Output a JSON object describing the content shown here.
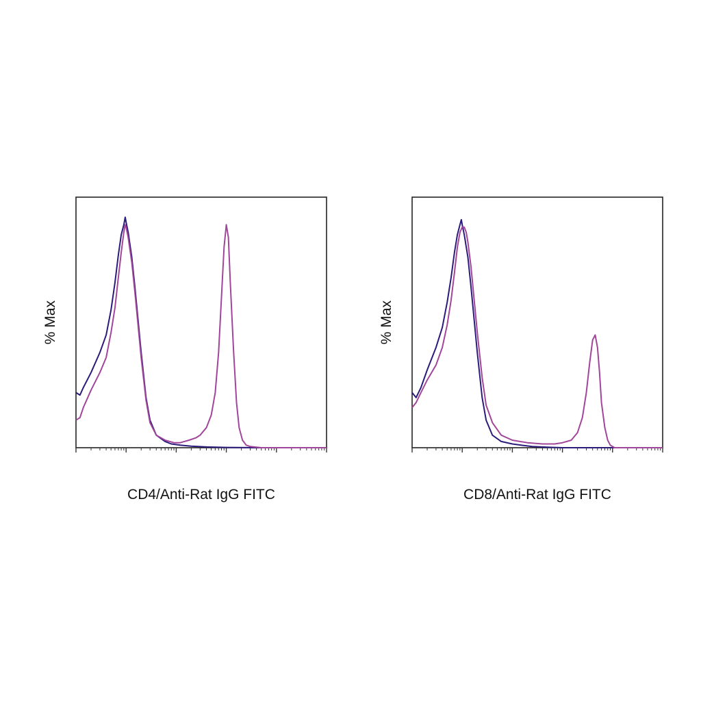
{
  "figure": {
    "panels": [
      {
        "xlabel": "CD4/Anti-Rat IgG FITC",
        "ylabel": "% Max"
      },
      {
        "xlabel": "CD8/Anti-Rat IgG FITC",
        "ylabel": "% Max"
      }
    ]
  },
  "chart_data": [
    {
      "type": "line",
      "title": "",
      "xlabel": "CD4/Anti-Rat IgG FITC",
      "ylabel": "% Max",
      "x_scale": "log",
      "xlim": [
        1,
        100000
      ],
      "ylim": [
        0,
        100
      ],
      "grid": false,
      "legend": "none",
      "series": [
        {
          "color": "#2a1a7a",
          "x": [
            1.0,
            1.2,
            1.4,
            2,
            3,
            4,
            5,
            6,
            7,
            8,
            9,
            9.6,
            10,
            11,
            13,
            15,
            20,
            25,
            30,
            40,
            60,
            80,
            120,
            200,
            400,
            1000,
            5000,
            100000
          ],
          "y": [
            22,
            21,
            24,
            30,
            38,
            45,
            55,
            66,
            77,
            85,
            89,
            92,
            90,
            86,
            76,
            64,
            38,
            20,
            11,
            5,
            2.5,
            1.5,
            1,
            0.6,
            0.3,
            0.1,
            0,
            0
          ]
        },
        {
          "color": "#a0459a",
          "x": [
            1.0,
            1.2,
            1.4,
            2,
            3,
            4,
            5,
            6,
            7,
            8,
            9,
            9.6,
            10,
            11,
            13,
            15,
            20,
            25,
            30,
            40,
            60,
            90,
            120,
            180,
            250,
            300,
            400,
            500,
            600,
            700,
            800,
            900,
            1000,
            1100,
            1200,
            1400,
            1600,
            1800,
            2100,
            2500,
            3000,
            5000,
            100000
          ],
          "y": [
            11,
            12,
            16,
            23,
            30,
            36,
            46,
            56,
            68,
            78,
            86,
            89,
            88,
            84,
            74,
            62,
            36,
            19,
            10,
            5,
            3,
            2,
            2,
            3,
            4,
            5,
            8,
            13,
            22,
            38,
            60,
            80,
            89,
            84,
            66,
            38,
            18,
            8,
            3,
            1,
            0.5,
            0,
            0
          ]
        }
      ]
    },
    {
      "type": "line",
      "title": "",
      "xlabel": "CD8/Anti-Rat IgG FITC",
      "ylabel": "% Max",
      "x_scale": "log",
      "xlim": [
        1,
        100000
      ],
      "ylim": [
        0,
        100
      ],
      "grid": false,
      "legend": "none",
      "series": [
        {
          "color": "#2a1a7a",
          "x": [
            1.0,
            1.2,
            1.5,
            2,
            3,
            4,
            5,
            6,
            7,
            8,
            9,
            9.6,
            10,
            11,
            13,
            15,
            20,
            25,
            30,
            40,
            60,
            100,
            150,
            250,
            500,
            1000,
            5000,
            100000
          ],
          "y": [
            22,
            20,
            24,
            31,
            40,
            48,
            58,
            68,
            78,
            85,
            89,
            91,
            89,
            85,
            76,
            64,
            38,
            20,
            11,
            5,
            2.5,
            1.5,
            1,
            0.5,
            0.2,
            0,
            0,
            0
          ]
        },
        {
          "color": "#a0459a",
          "x": [
            1.0,
            1.2,
            1.5,
            2,
            3,
            4,
            5,
            6,
            7,
            8,
            9,
            10,
            11,
            12,
            13,
            15,
            20,
            25,
            30,
            40,
            60,
            100,
            200,
            400,
            700,
            1000,
            1500,
            2000,
            2500,
            3000,
            3500,
            4000,
            4500,
            5000,
            5500,
            6000,
            7000,
            8000,
            9000,
            11000,
            100000
          ],
          "y": [
            16,
            18,
            22,
            27,
            33,
            40,
            49,
            59,
            70,
            80,
            86,
            88,
            88,
            86,
            82,
            72,
            46,
            28,
            17,
            10,
            5,
            3,
            2,
            1.5,
            1.5,
            2,
            3,
            6,
            12,
            22,
            34,
            43,
            45,
            40,
            30,
            18,
            8,
            3,
            1,
            0,
            0
          ]
        }
      ]
    }
  ]
}
